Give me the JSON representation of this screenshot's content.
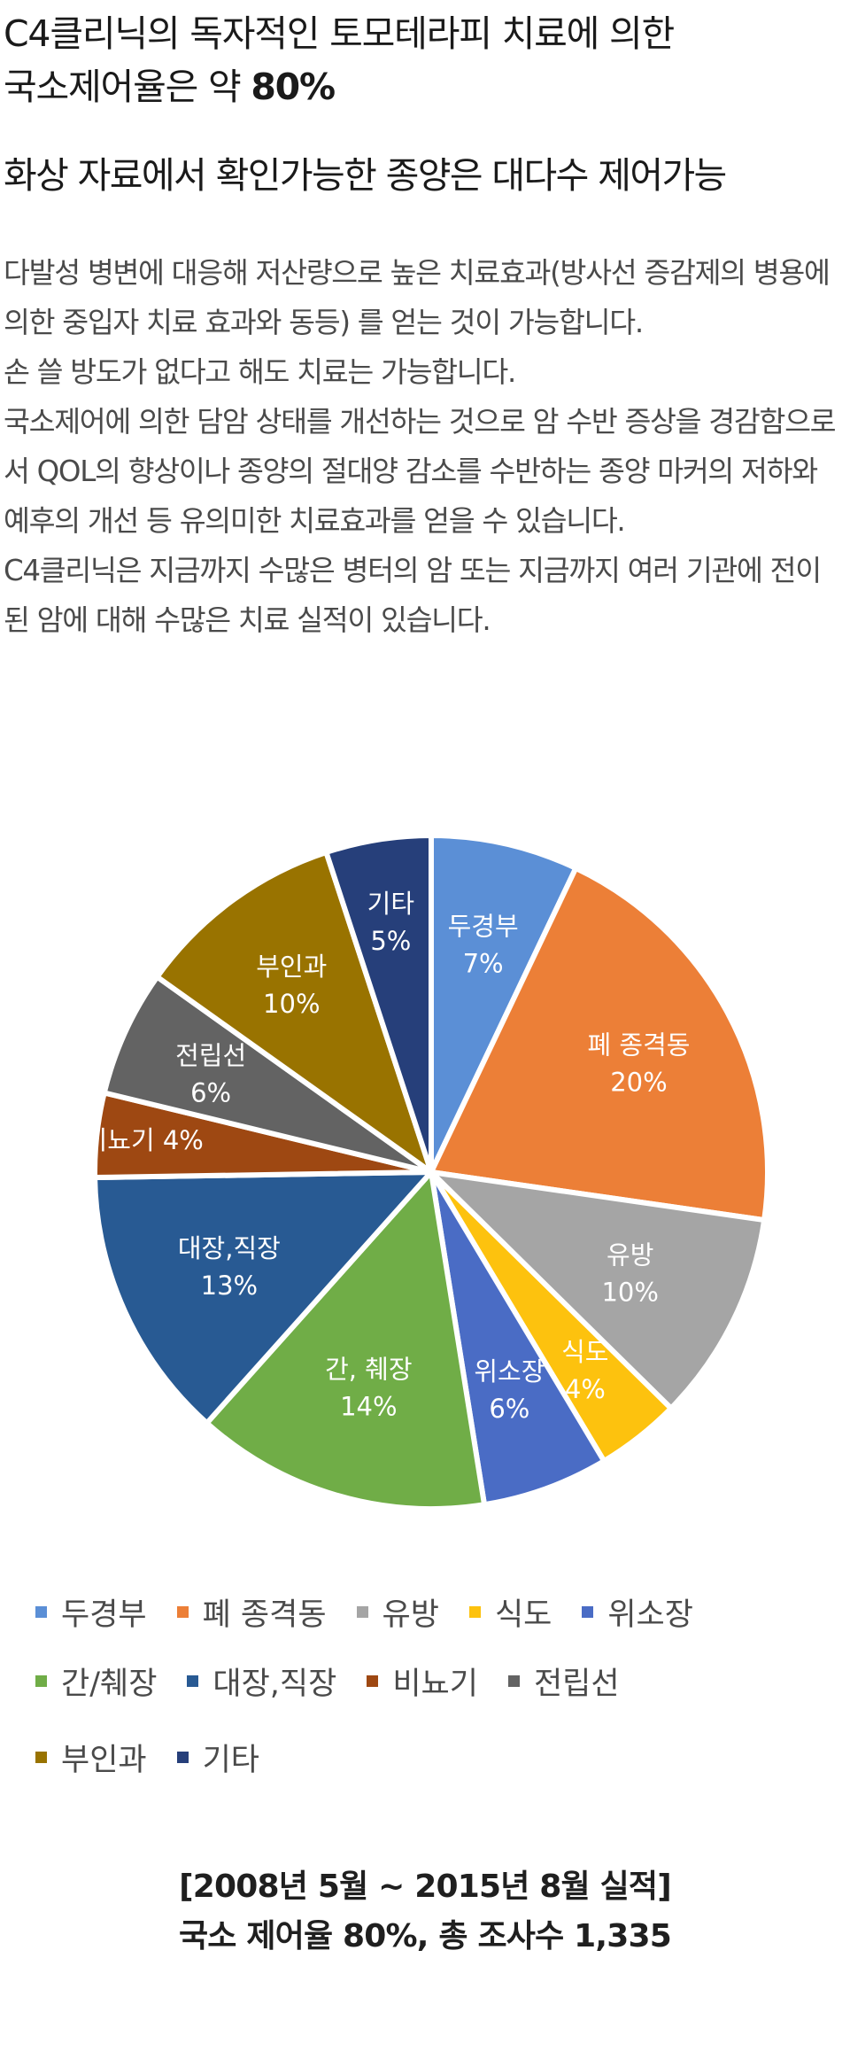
{
  "title": {
    "line1": "C4클리닉의 독자적인 토모테라피 치료에 의한",
    "line2_prefix": "국소제어율은 약 ",
    "line2_bold": "80%"
  },
  "subtitle": "화상 자료에서 확인가능한 종양은 대다수 제어가능",
  "body": {
    "p1": "다발성 병변에 대응해 저산량으로 높은 치료효과(방사선 증감제의 병용에 의한 중입자 치료 효과와 동등) 를 얻는 것이 가능합니다.",
    "p2": "손 쓸 방도가 없다고 해도 치료는 가능합니다.",
    "p3": "국소제어에 의한 담암 상태를 개선하는 것으로 암 수반 증상을 경감함으로서 QOL의 향상이나 종양의 절대양 감소를 수반하는 종양 마커의 저하와 예후의 개선 등 유의미한 치료효과를 얻을 수 있습니다.",
    "p4": "C4클리닉은 지금까지 수많은 병터의 암 또는 지금까지 여러 기관에 전이된 암에 대해 수많은 치료 실적이 있습니다."
  },
  "chart_data": {
    "type": "pie",
    "categories": [
      "두경부",
      "폐 종격동",
      "유방",
      "식도",
      "위소장",
      "간, 췌장",
      "대장,직장",
      "비뇨기",
      "전립선",
      "부인과",
      "기타"
    ],
    "slice_labels": [
      "두경부",
      "폐 종격동",
      "유방",
      "식도",
      "위소장",
      "간, 췌장",
      "대장,직장",
      "비뇨기",
      "전립선",
      "부인과",
      "기타"
    ],
    "value_labels": [
      "7%",
      "20%",
      "10%",
      "4%",
      "6%",
      "14%",
      "13%",
      "4%",
      "6%",
      "10%",
      "5%"
    ],
    "values": [
      7,
      20,
      10,
      4,
      6,
      14,
      13,
      4,
      6,
      10,
      5
    ],
    "colors": [
      "#5b8fd6",
      "#ec7f37",
      "#a5a5a5",
      "#fdc20e",
      "#4a6cc5",
      "#70ad47",
      "#285a93",
      "#9e4812",
      "#636363",
      "#997300",
      "#263f7a"
    ],
    "legend_labels": [
      "두경부",
      "폐 종격동",
      "유방",
      "식도",
      "위소장",
      "간/췌장",
      "대장,직장",
      "비뇨기",
      "전립선",
      "부인과",
      "기타"
    ],
    "legend_position": "bottom",
    "start_angle_deg": 0,
    "direction": "clockwise"
  },
  "caption": {
    "line1": "[2008년 5월 ~ 2015년 8월 실적]",
    "line2": "국소 제어율 80%, 총 조사수 1,335"
  }
}
